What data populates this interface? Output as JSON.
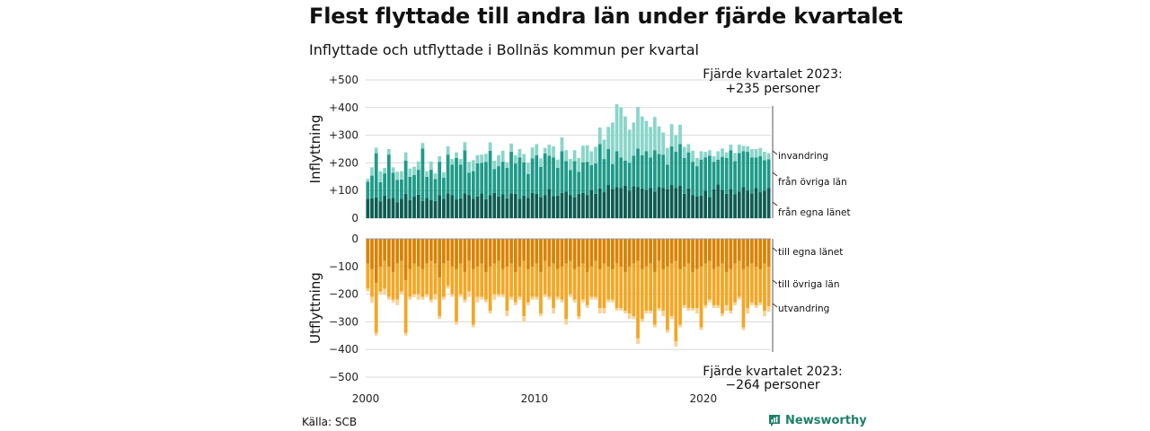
{
  "title": "Flest flyttade till andra län under fjärde kvartalet",
  "subtitle": "Inflyttade och utflyttade i Bollnäs kommun per kvartal",
  "source": "Källa: SCB",
  "brand": "Newsworthy",
  "annotation_top": [
    "Fjärde kvartalet 2023:",
    "+235 personer"
  ],
  "annotation_bottom": [
    "Fjärde kvartalet 2023:",
    "−264 personer"
  ],
  "colors": {
    "in_egna": "#0d5c52",
    "in_ovriga": "#1e9a88",
    "in_invandring": "#8ad5c9",
    "out_egna": "#d98200",
    "out_ovriga": "#f4a623",
    "out_utvandring": "#f9d295"
  },
  "chart_data": [
    {
      "type": "bar",
      "stacked": true,
      "ylabel": "Inflyttning",
      "ylim": [
        0,
        500
      ],
      "yticks": [
        "0",
        "+100",
        "+200",
        "+300",
        "+400",
        "+500"
      ],
      "xticks": [
        "2000",
        "2010",
        "2020"
      ],
      "x_start": "2000 Q1",
      "x_end": "2023 Q4",
      "series": [
        {
          "name": "från egna länet",
          "values": [
            70,
            72,
            75,
            60,
            82,
            70,
            74,
            58,
            70,
            88,
            66,
            78,
            85,
            62,
            74,
            65,
            62,
            84,
            70,
            90,
            84,
            68,
            72,
            90,
            84,
            70,
            78,
            90,
            68,
            84,
            92,
            78,
            86,
            72,
            90,
            88,
            70,
            82,
            74,
            92,
            88,
            76,
            84,
            106,
            80,
            82,
            92,
            96,
            84,
            76,
            88,
            92,
            84,
            102,
            88,
            108,
            94,
            120,
            106,
            112,
            110,
            118,
            100,
            116,
            112,
            108,
            102,
            110,
            96,
            112,
            110,
            104,
            120,
            110,
            118,
            88,
            108,
            84,
            78,
            82,
            100,
            76,
            104,
            122,
            102,
            88,
            106,
            86,
            96,
            112,
            100,
            90,
            110,
            94,
            100,
            110
          ]
        },
        {
          "name": "från övriga län",
          "values": [
            62,
            82,
            160,
            70,
            80,
            160,
            90,
            80,
            70,
            120,
            84,
            78,
            90,
            190,
            76,
            110,
            80,
            120,
            76,
            140,
            110,
            150,
            122,
            155,
            80,
            100,
            120,
            110,
            135,
            160,
            86,
            110,
            118,
            110,
            150,
            110,
            150,
            120,
            86,
            124,
            140,
            110,
            150,
            120,
            140,
            100,
            150,
            110,
            90,
            130,
            80,
            110,
            120,
            90,
            110,
            160,
            120,
            130,
            90,
            130,
            110,
            90,
            100,
            110,
            140,
            120,
            140,
            110,
            150,
            120,
            120,
            90,
            140,
            130,
            150,
            130,
            130,
            120,
            110,
            130,
            120,
            150,
            100,
            90,
            120,
            130,
            140,
            120,
            140,
            130,
            140,
            130,
            110,
            130,
            110,
            103
          ]
        },
        {
          "name": "invandring",
          "values": [
            10,
            30,
            20,
            40,
            20,
            20,
            20,
            30,
            30,
            30,
            30,
            30,
            30,
            20,
            20,
            30,
            20,
            20,
            20,
            30,
            20,
            20,
            20,
            30,
            40,
            40,
            30,
            30,
            30,
            30,
            30,
            40,
            40,
            20,
            30,
            30,
            30,
            30,
            40,
            40,
            40,
            30,
            20,
            40,
            40,
            30,
            50,
            40,
            40,
            40,
            50,
            60,
            60,
            50,
            60,
            60,
            70,
            80,
            150,
            170,
            180,
            160,
            120,
            120,
            150,
            140,
            110,
            110,
            120,
            100,
            80,
            60,
            80,
            60,
            70,
            40,
            30,
            40,
            30,
            30,
            20,
            20,
            20,
            30,
            30,
            20,
            20,
            30,
            30,
            20,
            20,
            30,
            30,
            30,
            30,
            22
          ]
        }
      ]
    },
    {
      "type": "bar",
      "stacked": true,
      "ylabel": "Utflyttning",
      "ylim": [
        -500,
        0
      ],
      "yticks": [
        "−500",
        "−400",
        "−300",
        "−200",
        "−100",
        "0"
      ],
      "xticks": [
        "2000",
        "2010",
        "2020"
      ],
      "x_start": "2000 Q1",
      "x_end": "2023 Q4",
      "series": [
        {
          "name": "till egna länet",
          "values": [
            -90,
            -110,
            -160,
            -100,
            -80,
            -100,
            -120,
            -90,
            -80,
            -150,
            -110,
            -90,
            -100,
            -110,
            -90,
            -80,
            -90,
            -140,
            -90,
            -80,
            -100,
            -110,
            -90,
            -120,
            -80,
            -110,
            -100,
            -90,
            -120,
            -100,
            -90,
            -80,
            -110,
            -100,
            -90,
            -120,
            -100,
            -80,
            -110,
            -100,
            -90,
            -120,
            -80,
            -100,
            -90,
            -110,
            -100,
            -90,
            -80,
            -110,
            -100,
            -90,
            -120,
            -100,
            -80,
            -110,
            -90,
            -100,
            -110,
            -90,
            -100,
            -120,
            -100,
            -90,
            -80,
            -110,
            -100,
            -90,
            -120,
            -80,
            -110,
            -100,
            -90,
            -80,
            -110,
            -100,
            -90,
            -120,
            -110,
            -100,
            -90,
            -80,
            -110,
            -100,
            -90,
            -120,
            -110,
            -90,
            -80,
            -110,
            -100,
            -90,
            -100,
            -110,
            -90,
            -100
          ]
        },
        {
          "name": "till övriga län",
          "values": [
            -90,
            -100,
            -180,
            -90,
            -100,
            -110,
            -100,
            -130,
            -110,
            -190,
            -100,
            -110,
            -100,
            -100,
            -110,
            -140,
            -110,
            -140,
            -120,
            -90,
            -100,
            -190,
            -110,
            -100,
            -110,
            -200,
            -110,
            -120,
            -100,
            -160,
            -110,
            -120,
            -90,
            -160,
            -120,
            -110,
            -110,
            -200,
            -120,
            -110,
            -120,
            -150,
            -120,
            -110,
            -160,
            -100,
            -120,
            -200,
            -120,
            -110,
            -180,
            -130,
            -120,
            -110,
            -130,
            -140,
            -160,
            -120,
            -110,
            -160,
            -150,
            -140,
            -170,
            -190,
            -280,
            -180,
            -160,
            -170,
            -190,
            -170,
            -150,
            -230,
            -190,
            -290,
            -200,
            -140,
            -160,
            -130,
            -140,
            -220,
            -150,
            -140,
            -130,
            -140,
            -180,
            -120,
            -150,
            -140,
            -130,
            -210,
            -150,
            -140,
            -140,
            -120,
            -170,
            -144
          ]
        },
        {
          "name": "utvandring",
          "values": [
            -10,
            -20,
            -10,
            -10,
            -20,
            -10,
            -10,
            -20,
            -10,
            -10,
            -10,
            -10,
            -20,
            -10,
            -10,
            -10,
            -20,
            -10,
            -10,
            -10,
            -10,
            -10,
            -10,
            -10,
            -20,
            -10,
            -20,
            -10,
            -10,
            -10,
            -20,
            -10,
            -10,
            -20,
            -10,
            -10,
            -10,
            -20,
            -10,
            -10,
            -10,
            -10,
            -10,
            -10,
            -20,
            -10,
            -10,
            -20,
            -10,
            -10,
            -10,
            -10,
            -10,
            -10,
            -10,
            -20,
            -20,
            -10,
            -10,
            -10,
            -10,
            -10,
            -20,
            -10,
            -20,
            -10,
            -10,
            -10,
            -10,
            -10,
            -20,
            -10,
            -10,
            -20,
            -10,
            -10,
            -10,
            -10,
            -20,
            -10,
            -10,
            -10,
            -10,
            -10,
            -10,
            -20,
            -10,
            -10,
            -10,
            -10,
            -20,
            -10,
            -10,
            -10,
            -20,
            -20
          ]
        }
      ]
    }
  ]
}
